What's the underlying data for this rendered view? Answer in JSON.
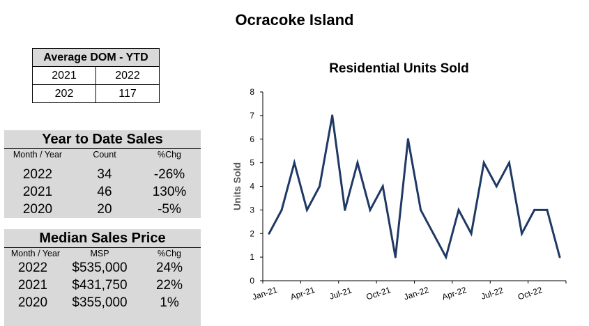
{
  "page_title": "Ocracoke Island",
  "dom": {
    "header": "Average DOM - YTD",
    "years": [
      "2021",
      "2022"
    ],
    "values": [
      "202",
      "117"
    ]
  },
  "ytd_sales": {
    "title": "Year to Date Sales",
    "headers": [
      "Month / Year",
      "Count",
      "%Chg"
    ],
    "rows": [
      [
        "2022",
        "34",
        "-26%"
      ],
      [
        "2021",
        "46",
        "130%"
      ],
      [
        "2020",
        "20",
        "-5%"
      ]
    ]
  },
  "median_price": {
    "title": "Median Sales Price",
    "headers": [
      "Month / Year",
      "MSP",
      "%Chg"
    ],
    "rows": [
      [
        "2022",
        "$535,000",
        "24%"
      ],
      [
        "2021",
        "$431,750",
        "22%"
      ],
      [
        "2020",
        "$355,000",
        "1%"
      ]
    ]
  },
  "chart_data": {
    "type": "line",
    "title": "Residential Units Sold",
    "ylabel": "Units Sold",
    "xlabel": "",
    "ylim": [
      0,
      8
    ],
    "yticks": [
      "0",
      "1",
      "2",
      "3",
      "4",
      "5",
      "6",
      "7",
      "8"
    ],
    "xtick_labels": [
      "Jan-21",
      "Apr-21",
      "Jul-21",
      "Oct-21",
      "Jan-22",
      "Apr-22",
      "Jul-22",
      "Oct-22"
    ],
    "x": [
      "Jan-21",
      "Feb-21",
      "Mar-21",
      "Apr-21",
      "May-21",
      "Jun-21",
      "Jul-21",
      "Aug-21",
      "Sep-21",
      "Oct-21",
      "Nov-21",
      "Dec-21",
      "Jan-22",
      "Feb-22",
      "Mar-22",
      "Apr-22",
      "May-22",
      "Jun-22",
      "Jul-22",
      "Aug-22",
      "Sep-22",
      "Oct-22",
      "Nov-22",
      "Dec-22"
    ],
    "values": [
      2,
      3,
      5,
      3,
      4,
      7,
      3,
      5,
      3,
      4,
      1,
      6,
      3,
      2,
      1,
      3,
      2,
      5,
      4,
      5,
      2,
      3,
      3,
      1
    ],
    "line_color": "#1f3864",
    "grid": false
  }
}
